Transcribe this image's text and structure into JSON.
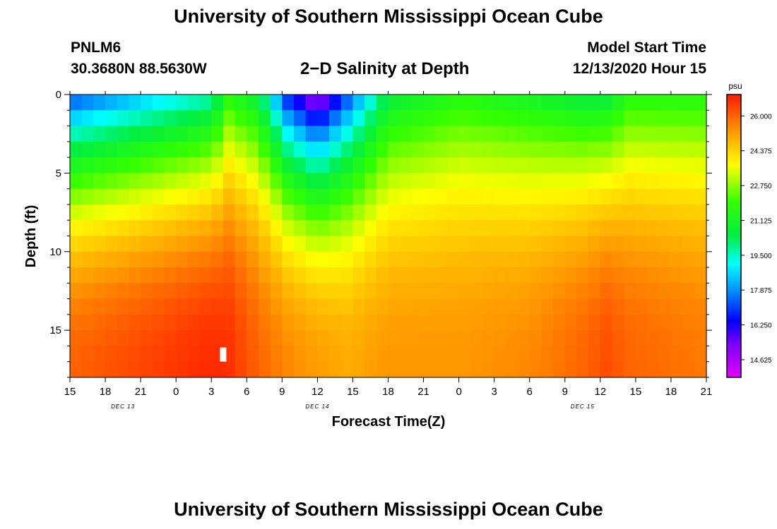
{
  "header": {
    "title": "University of Southern Mississippi Ocean Cube",
    "station": "PNLM6",
    "coordinates": "30.3680N 88.5630W",
    "subtitle": "2−D Salinity at Depth",
    "model_start_label": "Model Start Time",
    "model_start_value": "12/13/2020 Hour 15"
  },
  "footer": {
    "title": "University of Southern Mississippi Ocean Cube"
  },
  "chart_data": {
    "type": "heatmap",
    "title": "2−D Salinity at Depth",
    "xlabel": "Forecast Time(Z)",
    "ylabel": "Depth (ft)",
    "x_start_hour": 15,
    "x_end_hour": 69,
    "x_ticks": [
      {
        "hour": 15,
        "label": "15"
      },
      {
        "hour": 18,
        "label": "18"
      },
      {
        "hour": 21,
        "label": "21"
      },
      {
        "hour": 24,
        "label": "0"
      },
      {
        "hour": 27,
        "label": "3"
      },
      {
        "hour": 30,
        "label": "6"
      },
      {
        "hour": 33,
        "label": "9"
      },
      {
        "hour": 36,
        "label": "12"
      },
      {
        "hour": 39,
        "label": "15"
      },
      {
        "hour": 42,
        "label": "18"
      },
      {
        "hour": 45,
        "label": "21"
      },
      {
        "hour": 48,
        "label": "0"
      },
      {
        "hour": 51,
        "label": "3"
      },
      {
        "hour": 54,
        "label": "6"
      },
      {
        "hour": 57,
        "label": "9"
      },
      {
        "hour": 60,
        "label": "12"
      },
      {
        "hour": 63,
        "label": "15"
      },
      {
        "hour": 66,
        "label": "18"
      },
      {
        "hour": 69,
        "label": "21"
      }
    ],
    "date_labels": [
      {
        "hour": 19.5,
        "label": "DEC 13"
      },
      {
        "hour": 36,
        "label": "DEC 14"
      },
      {
        "hour": 58.5,
        "label": "DEC 15"
      }
    ],
    "ylim": [
      0,
      18
    ],
    "y_ticks": [
      0,
      5,
      10,
      15
    ],
    "colorbar": {
      "unit": "psu",
      "min": 13.8,
      "max": 27.0,
      "ticks": [
        "26.000",
        "24.375",
        "22.750",
        "21.125",
        "19.500",
        "17.875",
        "16.250",
        "14.625"
      ]
    },
    "marker": {
      "hour": 28,
      "depth_top": 16.1,
      "depth_bottom": 17.0
    },
    "profiles": [
      {
        "hour": 15,
        "surface": 17.0,
        "deep": 26.0
      },
      {
        "hour": 27,
        "surface": 19.5,
        "deep": 26.8
      },
      {
        "hour": 28.5,
        "surface": 21.5,
        "deep": 26.7
      },
      {
        "hour": 31,
        "surface": 20.5,
        "deep": 26.0
      },
      {
        "hour": 33.5,
        "surface": 16.5,
        "deep": 25.5
      },
      {
        "hour": 36,
        "surface": 14.5,
        "deep": 25.2
      },
      {
        "hour": 38.5,
        "surface": 17.0,
        "deep": 25.0
      },
      {
        "hour": 42,
        "surface": 20.5,
        "deep": 25.3
      },
      {
        "hour": 48,
        "surface": 21.5,
        "deep": 25.3
      },
      {
        "hour": 54,
        "surface": 21.0,
        "deep": 25.5
      },
      {
        "hour": 58.5,
        "surface": 20.5,
        "deep": 26.0
      },
      {
        "hour": 60.5,
        "surface": 20.5,
        "deep": 26.3
      },
      {
        "hour": 62.5,
        "surface": 21.5,
        "deep": 26.0
      },
      {
        "hour": 69,
        "surface": 21.5,
        "deep": 25.7
      }
    ]
  }
}
